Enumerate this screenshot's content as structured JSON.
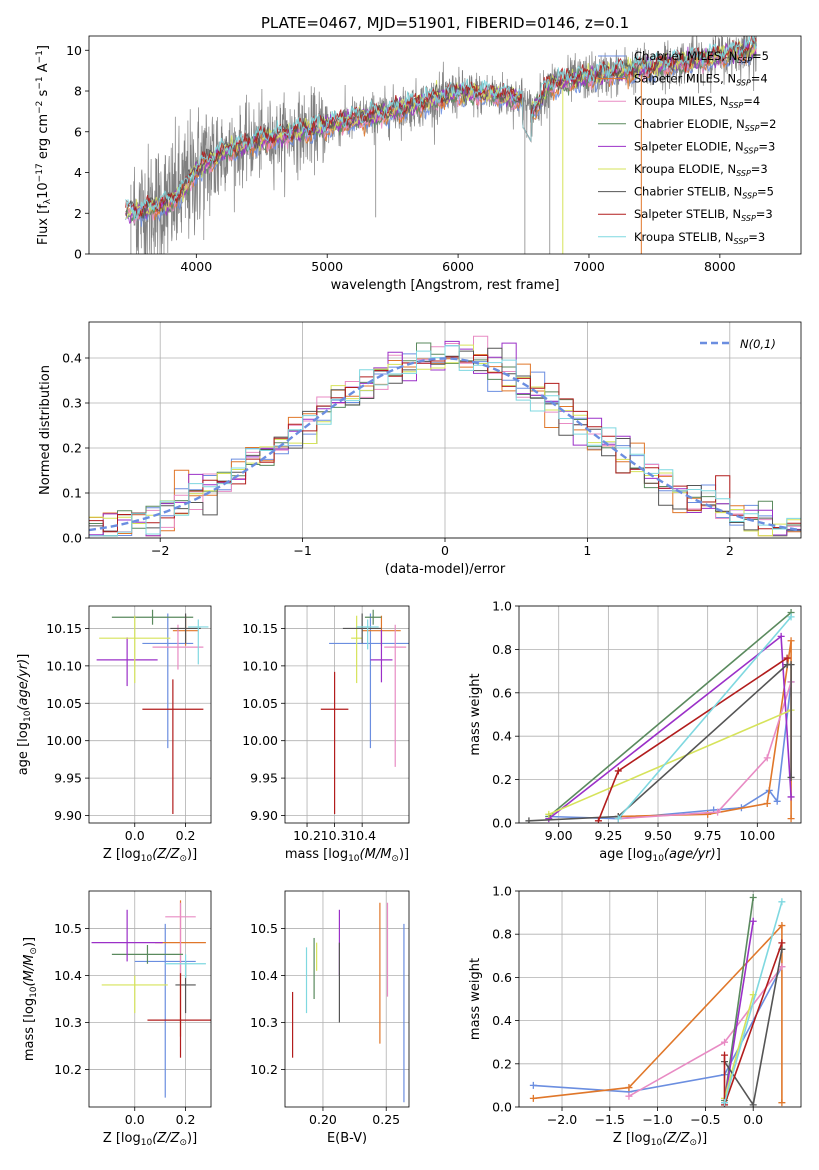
{
  "figure_title": "PLATE=0467, MJD=51901, FIBERID=0146, z=0.1",
  "colors": {
    "Chabrier MILES": "#6b8ee0",
    "Salpeter MILES": "#e0772a",
    "Kroupa MILES": "#e88bc4",
    "Chabrier ELODIE": "#5a8a5e",
    "Salpeter ELODIE": "#9b30c8",
    "Kroupa ELODIE": "#d6e35a",
    "Chabrier STELIB": "#555555",
    "Salpeter STELIB": "#b21d1d",
    "Kroupa STELIB": "#7fd8e0",
    "data": "#808080",
    "gaussian": "#6b8ee0"
  },
  "chart_data": [
    {
      "id": "spectrum",
      "type": "line",
      "xlabel": "wavelength [Angstrom, rest frame]",
      "ylabel": "Flux [f_λ 10^-17 erg cm^-2 s^-1 A^-1]",
      "xlim": [
        3180,
        8620
      ],
      "ylim": [
        0,
        10.7
      ],
      "xticks": [
        4000,
        5000,
        6000,
        7000,
        8000
      ],
      "yticks": [
        0,
        2,
        4,
        6,
        8,
        10
      ],
      "data_x_range": [
        3460,
        8280
      ],
      "continuum": [
        [
          3460,
          2.0
        ],
        [
          3600,
          2.1
        ],
        [
          3800,
          2.5
        ],
        [
          3900,
          3.1
        ],
        [
          4000,
          4.1
        ],
        [
          4200,
          5.0
        ],
        [
          4500,
          5.6
        ],
        [
          5000,
          6.3
        ],
        [
          5500,
          7.0
        ],
        [
          6000,
          7.9
        ],
        [
          6300,
          7.8
        ],
        [
          6500,
          7.6
        ],
        [
          6560,
          6.9
        ],
        [
          6700,
          8.3
        ],
        [
          7000,
          8.7
        ],
        [
          7500,
          9.2
        ],
        [
          8000,
          9.7
        ],
        [
          8280,
          10.1
        ]
      ],
      "legend": [
        {
          "label": "Chabrier MILES",
          "nssp": "5"
        },
        {
          "label": "Salpeter MILES",
          "nssp": "4"
        },
        {
          "label": "Kroupa MILES",
          "nssp": "4"
        },
        {
          "label": "Chabrier ELODIE",
          "nssp": "2"
        },
        {
          "label": "Salpeter ELODIE",
          "nssp": "3"
        },
        {
          "label": "Kroupa ELODIE",
          "nssp": "3"
        },
        {
          "label": "Chabrier STELIB",
          "nssp": "5"
        },
        {
          "label": "Salpeter STELIB",
          "nssp": "3"
        },
        {
          "label": "Kroupa STELIB",
          "nssp": "3"
        }
      ]
    },
    {
      "id": "residuals",
      "type": "histogram",
      "xlabel": "(data-model)/error",
      "ylabel": "Normed distribution",
      "xlim": [
        -2.5,
        2.5
      ],
      "ylim": [
        0,
        0.48
      ],
      "xticks": [
        -2,
        -1,
        0,
        1,
        2
      ],
      "yticks": [
        0.0,
        0.1,
        0.2,
        0.3,
        0.4
      ],
      "bin_width": 0.1,
      "legend": "N(0,1)",
      "gaussian": {
        "mean": 0,
        "sigma": 1
      }
    },
    {
      "id": "age_vs_Z",
      "type": "errorbar",
      "xlabel": "Z [log10(Z/Z⊙)]",
      "ylabel": "age [log10(age/yr)]",
      "xlim": [
        -0.18,
        0.3
      ],
      "ylim": [
        9.89,
        10.18
      ],
      "xticks": [
        0.0,
        0.2
      ],
      "yticks": [
        9.9,
        9.95,
        10.0,
        10.05,
        10.1,
        10.15
      ],
      "points": [
        {
          "series": "Chabrier MILES",
          "x": 0.13,
          "y": 10.13,
          "xerr": 0.1,
          "yerr_lo": 0.14,
          "yerr_hi": 0.04
        },
        {
          "series": "Salpeter MILES",
          "x": 0.2,
          "y": 10.147,
          "xerr": 0.05,
          "yerr_lo": 0.02,
          "yerr_hi": 0.02
        },
        {
          "series": "Kroupa MILES",
          "x": 0.17,
          "y": 10.125,
          "xerr": 0.1,
          "yerr_lo": 0.03,
          "yerr_hi": 0.03
        },
        {
          "series": "Chabrier ELODIE",
          "x": 0.07,
          "y": 10.165,
          "xerr": 0.16,
          "yerr_lo": 0.01,
          "yerr_hi": 0.01
        },
        {
          "series": "Salpeter ELODIE",
          "x": -0.03,
          "y": 10.108,
          "xerr": 0.12,
          "yerr_lo": 0.035,
          "yerr_hi": 0.03
        },
        {
          "series": "Kroupa ELODIE",
          "x": 0.0,
          "y": 10.137,
          "xerr": 0.14,
          "yerr_lo": 0.06,
          "yerr_hi": 0.03
        },
        {
          "series": "Chabrier STELIB",
          "x": 0.2,
          "y": 10.15,
          "xerr": 0.06,
          "yerr_lo": 0.02,
          "yerr_hi": 0.02
        },
        {
          "series": "Salpeter STELIB",
          "x": 0.15,
          "y": 10.042,
          "xerr": 0.12,
          "yerr_lo": 0.14,
          "yerr_hi": 0.04
        },
        {
          "series": "Kroupa STELIB",
          "x": 0.25,
          "y": 10.152,
          "xerr": 0.04,
          "yerr_lo": 0.05,
          "yerr_hi": 0.01
        }
      ]
    },
    {
      "id": "age_vs_mass",
      "type": "errorbar",
      "xlabel": "mass [log10(M/M⊙)]",
      "xlim": [
        10.12,
        10.57
      ],
      "ylim": [
        9.89,
        10.18
      ],
      "xticks": [
        10.2,
        10.3,
        10.4
      ],
      "yticks": [
        9.9,
        9.95,
        10.0,
        10.05,
        10.1,
        10.15
      ],
      "points": [
        {
          "series": "Chabrier MILES",
          "x": 10.43,
          "y": 10.13,
          "xerr": 0.15,
          "yerr_lo": 0.14,
          "yerr_hi": 0.04
        },
        {
          "series": "Salpeter MILES",
          "x": 10.47,
          "y": 10.147,
          "xerr": 0.07,
          "yerr_lo": 0.02,
          "yerr_hi": 0.02
        },
        {
          "series": "Kroupa MILES",
          "x": 10.52,
          "y": 10.125,
          "xerr": 0.04,
          "yerr_lo": 0.16,
          "yerr_hi": 0.03
        },
        {
          "series": "Chabrier ELODIE",
          "x": 10.44,
          "y": 10.165,
          "xerr": 0.03,
          "yerr_lo": 0.01,
          "yerr_hi": 0.01
        },
        {
          "series": "Salpeter ELODIE",
          "x": 10.47,
          "y": 10.108,
          "xerr": 0.04,
          "yerr_lo": 0.03,
          "yerr_hi": 0.04
        },
        {
          "series": "Kroupa ELODIE",
          "x": 10.38,
          "y": 10.137,
          "xerr": 0.02,
          "yerr_lo": 0.06,
          "yerr_hi": 0.03
        },
        {
          "series": "Chabrier STELIB",
          "x": 10.4,
          "y": 10.15,
          "xerr": 0.07,
          "yerr_lo": 0.02,
          "yerr_hi": 0.02
        },
        {
          "series": "Salpeter STELIB",
          "x": 10.3,
          "y": 10.042,
          "xerr": 0.05,
          "yerr_lo": 0.14,
          "yerr_hi": 0.05
        },
        {
          "series": "Kroupa STELIB",
          "x": 10.42,
          "y": 10.152,
          "xerr": 0.04,
          "yerr_lo": 0.03,
          "yerr_hi": 0.01
        }
      ]
    },
    {
      "id": "weight_vs_age",
      "type": "line",
      "xlabel": "age [log10(age/yr)]",
      "ylabel": "mass weight",
      "xlim": [
        8.8,
        10.22
      ],
      "ylim": [
        0,
        1.0
      ],
      "xticks": [
        9.0,
        9.25,
        9.5,
        9.75,
        10.0
      ],
      "yticks": [
        0.0,
        0.2,
        0.4,
        0.6,
        0.8,
        1.0
      ],
      "series": [
        {
          "name": "Chabrier MILES",
          "x": [
            8.95,
            9.3,
            9.78,
            9.92,
            10.06,
            10.1,
            10.17
          ],
          "y": [
            0.03,
            0.02,
            0.06,
            0.07,
            0.15,
            0.1,
            0.65
          ]
        },
        {
          "name": "Salpeter MILES",
          "x": [
            9.3,
            9.75,
            10.05,
            10.17,
            10.17
          ],
          "y": [
            0.03,
            0.04,
            0.09,
            0.84,
            0.02
          ]
        },
        {
          "name": "Kroupa MILES",
          "x": [
            9.3,
            9.8,
            10.05,
            10.17
          ],
          "y": [
            0.02,
            0.05,
            0.3,
            0.65
          ]
        },
        {
          "name": "Chabrier ELODIE",
          "x": [
            8.95,
            10.17
          ],
          "y": [
            0.03,
            0.97
          ]
        },
        {
          "name": "Salpeter ELODIE",
          "x": [
            8.95,
            10.12,
            10.17
          ],
          "y": [
            0.02,
            0.86,
            0.12
          ]
        },
        {
          "name": "Kroupa ELODIE",
          "x": [
            8.95,
            10.17
          ],
          "y": [
            0.04,
            0.52
          ]
        },
        {
          "name": "Chabrier STELIB",
          "x": [
            8.85,
            9.3,
            10.15,
            10.17,
            10.17
          ],
          "y": [
            0.01,
            0.03,
            0.73,
            0.73,
            0.21
          ]
        },
        {
          "name": "Salpeter STELIB",
          "x": [
            9.2,
            9.3,
            10.15
          ],
          "y": [
            0.01,
            0.24,
            0.76
          ]
        },
        {
          "name": "Kroupa STELIB",
          "x": [
            9.3,
            10.17
          ],
          "y": [
            0.02,
            0.95
          ]
        }
      ]
    },
    {
      "id": "mass_vs_Z",
      "type": "errorbar",
      "xlabel": "Z [log10(Z/Z⊙)]",
      "ylabel": "mass [log10(M/M⊙)]",
      "xlim": [
        -0.18,
        0.3
      ],
      "ylim": [
        10.12,
        10.58
      ],
      "xticks": [
        0.0,
        0.2
      ],
      "yticks": [
        10.2,
        10.3,
        10.4,
        10.5
      ],
      "points": [
        {
          "series": "Chabrier MILES",
          "x": 0.12,
          "y": 10.43,
          "xerr": 0.12,
          "yerr_lo": 0.29,
          "yerr_hi": 0.08
        },
        {
          "series": "Salpeter MILES",
          "x": 0.18,
          "y": 10.47,
          "xerr": 0.1,
          "yerr_lo": 0.2,
          "yerr_hi": 0.09
        },
        {
          "series": "Kroupa MILES",
          "x": 0.18,
          "y": 10.525,
          "xerr": 0.06,
          "yerr_lo": 0.13,
          "yerr_hi": 0.03
        },
        {
          "series": "Chabrier ELODIE",
          "x": 0.05,
          "y": 10.445,
          "xerr": 0.14,
          "yerr_lo": 0.02,
          "yerr_hi": 0.02
        },
        {
          "series": "Salpeter ELODIE",
          "x": -0.03,
          "y": 10.47,
          "xerr": 0.14,
          "yerr_lo": 0.04,
          "yerr_hi": 0.07
        },
        {
          "series": "Kroupa ELODIE",
          "x": 0.0,
          "y": 10.38,
          "xerr": 0.13,
          "yerr_lo": 0.06,
          "yerr_hi": 0.02
        },
        {
          "series": "Chabrier STELIB",
          "x": 0.2,
          "y": 10.38,
          "xerr": 0.04,
          "yerr_lo": 0.06,
          "yerr_hi": 0.05
        },
        {
          "series": "Salpeter STELIB",
          "x": 0.18,
          "y": 10.305,
          "xerr": 0.13,
          "yerr_lo": 0.08,
          "yerr_hi": 0.1
        },
        {
          "series": "Kroupa STELIB",
          "x": 0.2,
          "y": 10.425,
          "xerr": 0.08,
          "yerr_lo": 0.03,
          "yerr_hi": 0.02
        }
      ]
    },
    {
      "id": "mass_vs_ebv",
      "type": "errorbar",
      "xlabel": "E(B-V)",
      "xlim": [
        0.17,
        0.268
      ],
      "ylim": [
        10.12,
        10.58
      ],
      "xticks": [
        0.2,
        0.25
      ],
      "yticks": [
        10.2,
        10.3,
        10.4,
        10.5
      ],
      "points": [
        {
          "series": "Chabrier MILES",
          "x": 0.264,
          "y": 10.32,
          "xerr": 0,
          "yerr_lo": 0.19,
          "yerr_hi": 0.19
        },
        {
          "series": "Salpeter MILES",
          "x": 0.245,
          "y": 10.405,
          "xerr": 0,
          "yerr_lo": 0.15,
          "yerr_hi": 0.15
        },
        {
          "series": "Kroupa MILES",
          "x": 0.251,
          "y": 10.455,
          "xerr": 0,
          "yerr_lo": 0.1,
          "yerr_hi": 0.1
        },
        {
          "series": "Chabrier ELODIE",
          "x": 0.193,
          "y": 10.415,
          "xerr": 0,
          "yerr_lo": 0.065,
          "yerr_hi": 0.065
        },
        {
          "series": "Salpeter ELODIE",
          "x": 0.213,
          "y": 10.47,
          "xerr": 0,
          "yerr_lo": 0.07,
          "yerr_hi": 0.07
        },
        {
          "series": "Kroupa ELODIE",
          "x": 0.195,
          "y": 10.44,
          "xerr": 0,
          "yerr_lo": 0.03,
          "yerr_hi": 0.03
        },
        {
          "series": "Chabrier STELIB",
          "x": 0.213,
          "y": 10.385,
          "xerr": 0,
          "yerr_lo": 0.085,
          "yerr_hi": 0.085
        },
        {
          "series": "Salpeter STELIB",
          "x": 0.176,
          "y": 10.295,
          "xerr": 0,
          "yerr_lo": 0.07,
          "yerr_hi": 0.07
        },
        {
          "series": "Kroupa STELIB",
          "x": 0.187,
          "y": 10.39,
          "xerr": 0,
          "yerr_lo": 0.07,
          "yerr_hi": 0.07
        }
      ]
    },
    {
      "id": "weight_vs_Z",
      "type": "line",
      "xlabel": "Z [log10(Z/Z⊙)]",
      "ylabel": "mass weight",
      "xlim": [
        -2.45,
        0.5
      ],
      "ylim": [
        0,
        1.0
      ],
      "xticks": [
        -2.0,
        -1.5,
        -1.0,
        -0.5,
        0.0
      ],
      "yticks": [
        0.0,
        0.2,
        0.4,
        0.6,
        0.8,
        1.0
      ],
      "series": [
        {
          "name": "Chabrier MILES",
          "x": [
            -2.3,
            -1.3,
            -0.3,
            0.3
          ],
          "y": [
            0.1,
            0.07,
            0.15,
            0.65
          ]
        },
        {
          "name": "Salpeter MILES",
          "x": [
            -2.3,
            -1.3,
            0.3,
            0.3
          ],
          "y": [
            0.04,
            0.09,
            0.84,
            0.02
          ]
        },
        {
          "name": "Kroupa MILES",
          "x": [
            -1.3,
            -0.3,
            0.3
          ],
          "y": [
            0.05,
            0.3,
            0.65
          ]
        },
        {
          "name": "Chabrier ELODIE",
          "x": [
            -0.3,
            0.0
          ],
          "y": [
            0.03,
            0.97
          ]
        },
        {
          "name": "Salpeter ELODIE",
          "x": [
            -0.3,
            0.0
          ],
          "y": [
            0.02,
            0.86
          ]
        },
        {
          "name": "Kroupa ELODIE",
          "x": [
            -0.3,
            0.0
          ],
          "y": [
            0.04,
            0.52
          ]
        },
        {
          "name": "Chabrier STELIB",
          "x": [
            -0.3,
            0.0,
            0.3
          ],
          "y": [
            0.21,
            0.01,
            0.73
          ]
        },
        {
          "name": "Salpeter STELIB",
          "x": [
            -0.3,
            -0.3,
            0.3
          ],
          "y": [
            0.24,
            0.01,
            0.76
          ]
        },
        {
          "name": "Kroupa STELIB",
          "x": [
            -0.3,
            0.3
          ],
          "y": [
            0.02,
            0.95
          ]
        }
      ]
    }
  ]
}
